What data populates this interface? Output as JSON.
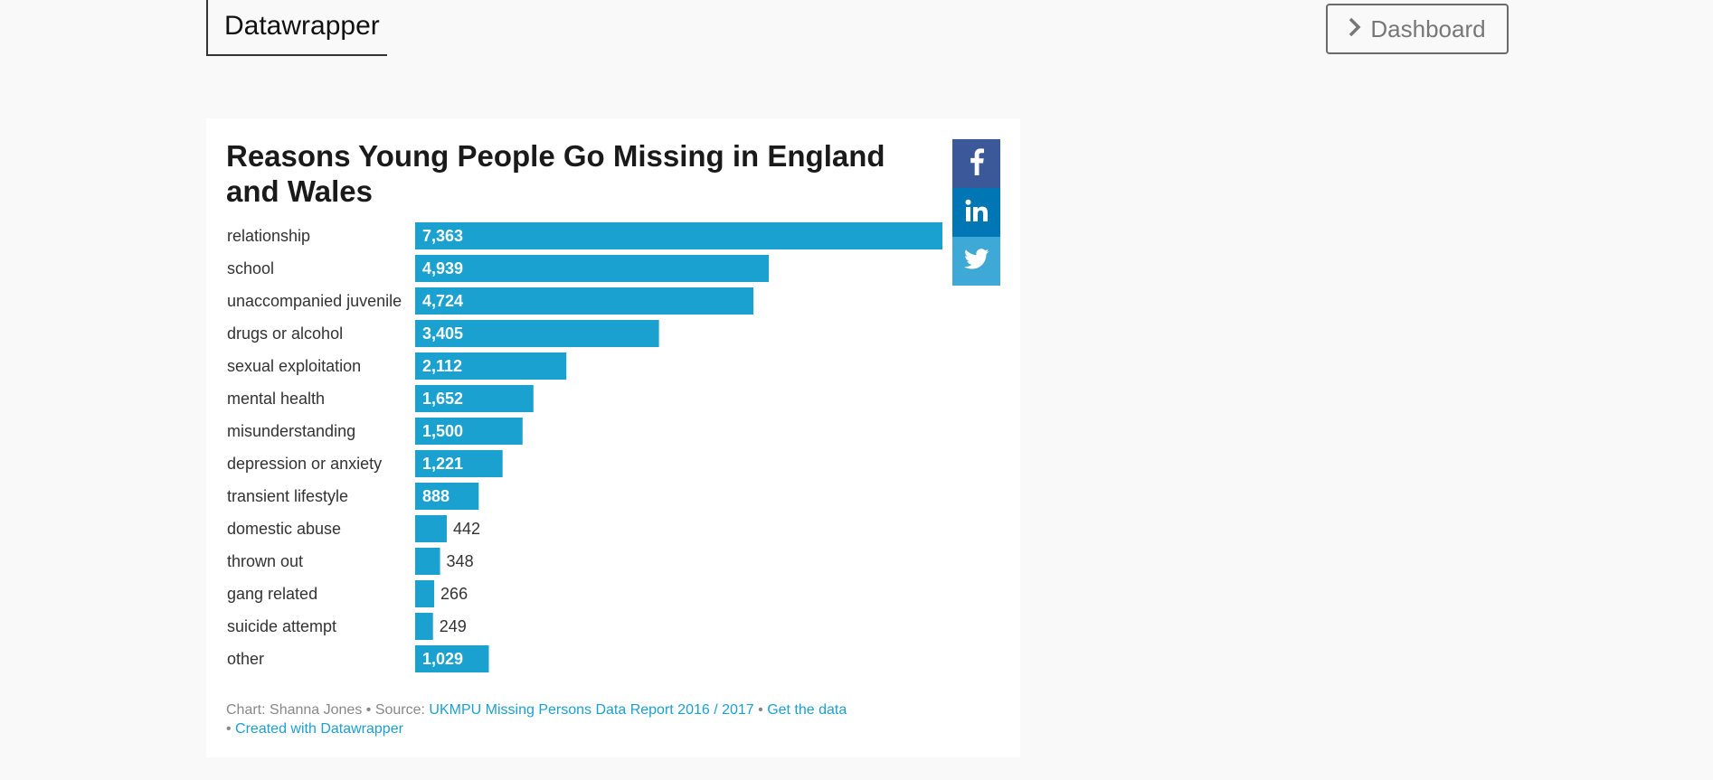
{
  "header": {
    "logo": "Datawrapper",
    "dashboard_label": "Dashboard"
  },
  "chart_data": {
    "type": "bar",
    "orientation": "horizontal",
    "title": "Reasons Young People Go Missing in England and Wales",
    "categories": [
      "relationship",
      "school",
      "unaccompanied juvenile",
      "drugs or alcohol",
      "sexual exploitation",
      "mental health",
      "misunderstanding",
      "depression or anxiety",
      "transient lifestyle",
      "domestic abuse",
      "thrown out",
      "gang related",
      "suicide attempt",
      "other"
    ],
    "values": [
      7363,
      4939,
      4724,
      3405,
      2112,
      1652,
      1500,
      1221,
      888,
      442,
      348,
      266,
      249,
      1029
    ],
    "value_labels": [
      "7,363",
      "4,939",
      "4,724",
      "3,405",
      "2,112",
      "1,652",
      "1,500",
      "1,221",
      "888",
      "442",
      "348",
      "266",
      "249",
      "1,029"
    ],
    "bar_color": "#1ba1d0",
    "xlim": [
      0,
      7363
    ]
  },
  "footer": {
    "chart_prefix": "Chart: Shanna Jones",
    "sep1": " • Source: ",
    "source_link": "UKMPU Missing Persons Data Report 2016 / 2017",
    "sep2": " • ",
    "get_data": "Get the data",
    "sep3": "• ",
    "created_with": "Created with Datawrapper"
  },
  "share": {
    "facebook": "facebook-icon",
    "linkedin": "linkedin-icon",
    "twitter": "twitter-icon"
  }
}
